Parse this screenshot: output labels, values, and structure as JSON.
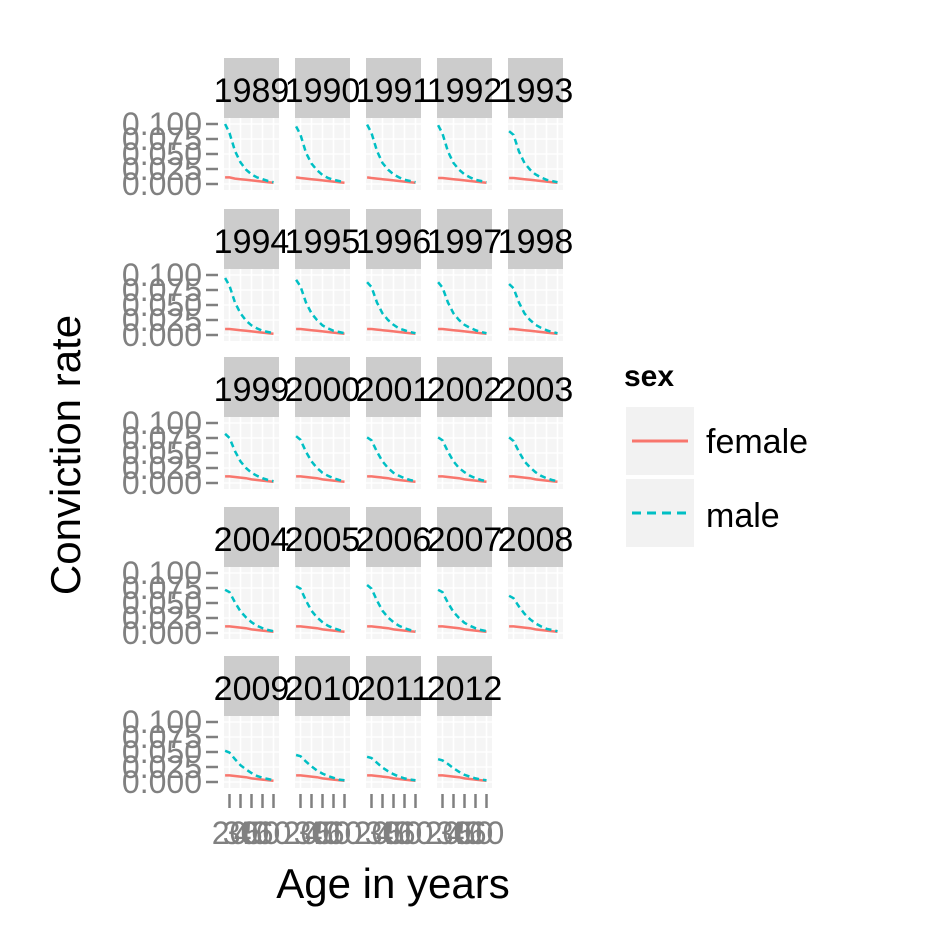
{
  "chart_data": {
    "type": "line",
    "facet_by": "year",
    "facet_columns": 5,
    "panels": [
      "1989",
      "1990",
      "1991",
      "1992",
      "1993",
      "1994",
      "1995",
      "1996",
      "1997",
      "1998",
      "1999",
      "2000",
      "2001",
      "2002",
      "2003",
      "2004",
      "2005",
      "2006",
      "2007",
      "2008",
      "2009",
      "2010",
      "2011",
      "2012"
    ],
    "xlabel": "Age in years",
    "ylabel": "Conviction rate",
    "x_ticks": [
      20,
      30,
      40,
      50,
      60
    ],
    "x_tick_labels": [
      "20",
      "30",
      "40",
      "50",
      "60"
    ],
    "xlim": [
      15,
      65
    ],
    "y_ticks": [
      0,
      0.025,
      0.05,
      0.075,
      0.1
    ],
    "y_tick_labels": [
      "0.000",
      "0.025",
      "0.050",
      "0.075",
      "0.100"
    ],
    "ylim": [
      0,
      0.1
    ],
    "grid": true,
    "legend": {
      "title": "sex",
      "placement": "right",
      "entries": [
        "female",
        "male"
      ]
    },
    "ages": [
      16,
      20,
      25,
      30,
      35,
      40,
      45,
      50,
      55,
      60
    ],
    "series": [
      {
        "name": "female",
        "color": "#F8766D",
        "dash": "solid",
        "values_by_panel": {
          "1989": [
            0.011,
            0.011,
            0.009,
            0.008,
            0.007,
            0.006,
            0.005,
            0.004,
            0.003,
            0.002
          ],
          "1990": [
            0.011,
            0.01,
            0.009,
            0.008,
            0.007,
            0.006,
            0.005,
            0.004,
            0.003,
            0.002
          ],
          "1991": [
            0.011,
            0.01,
            0.009,
            0.008,
            0.007,
            0.006,
            0.005,
            0.004,
            0.003,
            0.002
          ],
          "1992": [
            0.01,
            0.01,
            0.009,
            0.008,
            0.007,
            0.006,
            0.005,
            0.004,
            0.003,
            0.002
          ],
          "1993": [
            0.01,
            0.01,
            0.009,
            0.008,
            0.007,
            0.006,
            0.005,
            0.004,
            0.003,
            0.002
          ],
          "1994": [
            0.01,
            0.01,
            0.009,
            0.008,
            0.007,
            0.006,
            0.005,
            0.004,
            0.003,
            0.002
          ],
          "1995": [
            0.01,
            0.01,
            0.009,
            0.008,
            0.007,
            0.006,
            0.005,
            0.004,
            0.003,
            0.002
          ],
          "1996": [
            0.01,
            0.01,
            0.009,
            0.008,
            0.007,
            0.006,
            0.005,
            0.004,
            0.003,
            0.002
          ],
          "1997": [
            0.01,
            0.01,
            0.009,
            0.008,
            0.007,
            0.006,
            0.005,
            0.004,
            0.003,
            0.002
          ],
          "1998": [
            0.01,
            0.01,
            0.009,
            0.008,
            0.007,
            0.006,
            0.005,
            0.004,
            0.003,
            0.002
          ],
          "1999": [
            0.011,
            0.011,
            0.01,
            0.009,
            0.008,
            0.006,
            0.005,
            0.004,
            0.003,
            0.002
          ],
          "2000": [
            0.011,
            0.011,
            0.01,
            0.009,
            0.008,
            0.006,
            0.005,
            0.004,
            0.003,
            0.002
          ],
          "2001": [
            0.011,
            0.011,
            0.01,
            0.009,
            0.008,
            0.006,
            0.005,
            0.004,
            0.003,
            0.002
          ],
          "2002": [
            0.011,
            0.011,
            0.01,
            0.009,
            0.008,
            0.006,
            0.005,
            0.004,
            0.003,
            0.002
          ],
          "2003": [
            0.011,
            0.011,
            0.01,
            0.009,
            0.008,
            0.006,
            0.005,
            0.004,
            0.003,
            0.002
          ],
          "2004": [
            0.011,
            0.011,
            0.01,
            0.009,
            0.008,
            0.006,
            0.005,
            0.004,
            0.003,
            0.002
          ],
          "2005": [
            0.011,
            0.011,
            0.01,
            0.009,
            0.008,
            0.006,
            0.005,
            0.004,
            0.003,
            0.002
          ],
          "2006": [
            0.011,
            0.011,
            0.01,
            0.009,
            0.008,
            0.006,
            0.005,
            0.004,
            0.003,
            0.002
          ],
          "2007": [
            0.011,
            0.011,
            0.01,
            0.009,
            0.008,
            0.006,
            0.005,
            0.004,
            0.003,
            0.002
          ],
          "2008": [
            0.011,
            0.011,
            0.01,
            0.009,
            0.008,
            0.006,
            0.005,
            0.004,
            0.003,
            0.002
          ],
          "2009": [
            0.011,
            0.011,
            0.01,
            0.009,
            0.008,
            0.006,
            0.005,
            0.004,
            0.003,
            0.002
          ],
          "2010": [
            0.011,
            0.011,
            0.01,
            0.009,
            0.008,
            0.006,
            0.005,
            0.004,
            0.003,
            0.002
          ],
          "2011": [
            0.011,
            0.011,
            0.01,
            0.009,
            0.008,
            0.006,
            0.005,
            0.004,
            0.003,
            0.002
          ],
          "2012": [
            0.011,
            0.011,
            0.01,
            0.009,
            0.008,
            0.006,
            0.005,
            0.004,
            0.003,
            0.002
          ]
        }
      },
      {
        "name": "male",
        "color": "#00BFC4",
        "dash": "dashed",
        "values_by_panel": {
          "1989": [
            0.1,
            0.085,
            0.055,
            0.036,
            0.024,
            0.016,
            0.011,
            0.008,
            0.005,
            0.003
          ],
          "1990": [
            0.096,
            0.082,
            0.052,
            0.034,
            0.023,
            0.015,
            0.01,
            0.007,
            0.005,
            0.003
          ],
          "1991": [
            0.099,
            0.085,
            0.055,
            0.035,
            0.024,
            0.016,
            0.011,
            0.007,
            0.005,
            0.003
          ],
          "1992": [
            0.098,
            0.084,
            0.054,
            0.035,
            0.024,
            0.016,
            0.011,
            0.007,
            0.005,
            0.003
          ],
          "1993": [
            0.088,
            0.082,
            0.054,
            0.035,
            0.024,
            0.016,
            0.011,
            0.007,
            0.005,
            0.003
          ],
          "1994": [
            0.095,
            0.082,
            0.054,
            0.036,
            0.024,
            0.016,
            0.011,
            0.007,
            0.005,
            0.003
          ],
          "1995": [
            0.092,
            0.081,
            0.054,
            0.036,
            0.025,
            0.016,
            0.011,
            0.007,
            0.005,
            0.003
          ],
          "1996": [
            0.088,
            0.08,
            0.054,
            0.036,
            0.025,
            0.017,
            0.011,
            0.008,
            0.005,
            0.003
          ],
          "1997": [
            0.088,
            0.079,
            0.054,
            0.036,
            0.025,
            0.017,
            0.012,
            0.008,
            0.005,
            0.003
          ],
          "1998": [
            0.085,
            0.078,
            0.054,
            0.036,
            0.025,
            0.017,
            0.012,
            0.008,
            0.005,
            0.003
          ],
          "1999": [
            0.082,
            0.075,
            0.053,
            0.036,
            0.025,
            0.017,
            0.012,
            0.008,
            0.005,
            0.003
          ],
          "2000": [
            0.078,
            0.072,
            0.052,
            0.036,
            0.025,
            0.017,
            0.012,
            0.008,
            0.005,
            0.003
          ],
          "2001": [
            0.076,
            0.071,
            0.052,
            0.036,
            0.025,
            0.017,
            0.012,
            0.008,
            0.005,
            0.003
          ],
          "2002": [
            0.076,
            0.071,
            0.052,
            0.036,
            0.025,
            0.018,
            0.012,
            0.008,
            0.005,
            0.003
          ],
          "2003": [
            0.076,
            0.07,
            0.052,
            0.036,
            0.026,
            0.018,
            0.012,
            0.008,
            0.005,
            0.003
          ],
          "2004": [
            0.072,
            0.068,
            0.051,
            0.036,
            0.026,
            0.018,
            0.012,
            0.008,
            0.005,
            0.003
          ],
          "2005": [
            0.078,
            0.074,
            0.054,
            0.037,
            0.026,
            0.018,
            0.012,
            0.008,
            0.005,
            0.003
          ],
          "2006": [
            0.08,
            0.074,
            0.054,
            0.037,
            0.026,
            0.018,
            0.012,
            0.008,
            0.005,
            0.003
          ],
          "2007": [
            0.072,
            0.068,
            0.05,
            0.035,
            0.025,
            0.017,
            0.012,
            0.008,
            0.005,
            0.003
          ],
          "2008": [
            0.062,
            0.058,
            0.044,
            0.032,
            0.023,
            0.016,
            0.011,
            0.007,
            0.005,
            0.003
          ],
          "2009": [
            0.052,
            0.049,
            0.038,
            0.028,
            0.021,
            0.015,
            0.01,
            0.007,
            0.005,
            0.003
          ],
          "2010": [
            0.045,
            0.043,
            0.034,
            0.026,
            0.019,
            0.014,
            0.01,
            0.007,
            0.004,
            0.003
          ],
          "2011": [
            0.042,
            0.04,
            0.032,
            0.024,
            0.018,
            0.013,
            0.009,
            0.006,
            0.004,
            0.003
          ],
          "2012": [
            0.038,
            0.036,
            0.03,
            0.023,
            0.017,
            0.012,
            0.009,
            0.006,
            0.004,
            0.003
          ]
        }
      }
    ]
  }
}
